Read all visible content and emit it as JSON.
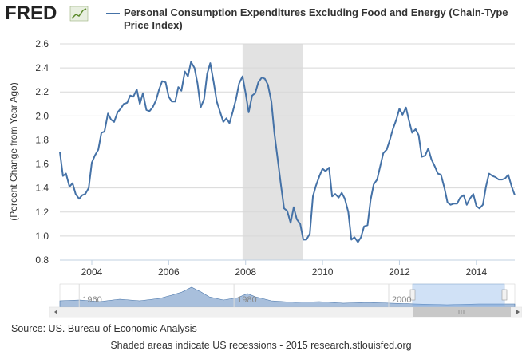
{
  "logo": "FRED",
  "source": "Source: US. Bureau of Economic Analysis",
  "footer": "Shaded areas indicate US recessions - 2015 research.stlouisfed.org",
  "chart_data": {
    "type": "line",
    "ylabel": "(Percent Change from Year Ago)",
    "xlim": [
      2003.17,
      2015.0
    ],
    "xticks": [
      2004,
      2006,
      2008,
      2010,
      2012,
      2014
    ],
    "ylim": [
      0.8,
      2.6
    ],
    "yticks": [
      0.8,
      {
        "value": 1.0,
        "label": "1.0"
      },
      1.2,
      1.4,
      1.6,
      1.8,
      {
        "value": 2.0,
        "label": "2.0"
      },
      2.2,
      2.4,
      2.6
    ],
    "grid": true,
    "recessions": [
      [
        2007.92,
        2009.5
      ]
    ],
    "recession_color": "#e2e2e2",
    "navigator_xlim": [
      1957.5,
      2016.3
    ],
    "navigator_xticks": [
      1960,
      1980,
      2000
    ],
    "x": [
      2003.17,
      2003.25,
      2003.33,
      2003.42,
      2003.5,
      2003.58,
      2003.67,
      2003.75,
      2003.83,
      2003.92,
      2004.0,
      2004.08,
      2004.17,
      2004.25,
      2004.33,
      2004.42,
      2004.5,
      2004.58,
      2004.67,
      2004.75,
      2004.83,
      2004.92,
      2005.0,
      2005.08,
      2005.17,
      2005.25,
      2005.33,
      2005.42,
      2005.5,
      2005.58,
      2005.67,
      2005.75,
      2005.83,
      2005.92,
      2006.0,
      2006.08,
      2006.17,
      2006.25,
      2006.33,
      2006.42,
      2006.5,
      2006.58,
      2006.67,
      2006.75,
      2006.83,
      2006.92,
      2007.0,
      2007.08,
      2007.17,
      2007.25,
      2007.33,
      2007.42,
      2007.5,
      2007.58,
      2007.67,
      2007.75,
      2007.83,
      2007.92,
      2008.0,
      2008.08,
      2008.17,
      2008.25,
      2008.33,
      2008.42,
      2008.5,
      2008.58,
      2008.67,
      2008.75,
      2008.83,
      2008.92,
      2009.0,
      2009.08,
      2009.17,
      2009.25,
      2009.33,
      2009.42,
      2009.5,
      2009.58,
      2009.67,
      2009.75,
      2009.83,
      2009.92,
      2010.0,
      2010.08,
      2010.17,
      2010.25,
      2010.33,
      2010.42,
      2010.5,
      2010.58,
      2010.67,
      2010.75,
      2010.83,
      2010.92,
      2011.0,
      2011.08,
      2011.17,
      2011.25,
      2011.33,
      2011.42,
      2011.5,
      2011.58,
      2011.67,
      2011.75,
      2011.83,
      2011.92,
      2012.0,
      2012.08,
      2012.17,
      2012.25,
      2012.33,
      2012.42,
      2012.5,
      2012.58,
      2012.67,
      2012.75,
      2012.83,
      2012.92,
      2013.0,
      2013.08,
      2013.17,
      2013.25,
      2013.33,
      2013.42,
      2013.5,
      2013.58,
      2013.67,
      2013.75,
      2013.83,
      2013.92,
      2014.0,
      2014.08,
      2014.17,
      2014.25,
      2014.33,
      2014.42,
      2014.5,
      2014.58,
      2014.67,
      2014.75,
      2014.83,
      2014.92,
      2015.0
    ],
    "series": [
      {
        "name": "Personal Consumption Expenditures Excluding Food and Energy (Chain-Type Price Index)",
        "color": "#4572A7",
        "values": [
          1.7,
          1.5,
          1.52,
          1.41,
          1.44,
          1.35,
          1.31,
          1.34,
          1.35,
          1.4,
          1.61,
          1.67,
          1.72,
          1.86,
          1.87,
          2.02,
          1.97,
          1.95,
          2.03,
          2.06,
          2.1,
          2.11,
          2.17,
          2.16,
          2.22,
          2.1,
          2.19,
          2.05,
          2.04,
          2.07,
          2.13,
          2.22,
          2.29,
          2.28,
          2.16,
          2.12,
          2.12,
          2.24,
          2.21,
          2.37,
          2.33,
          2.45,
          2.4,
          2.27,
          2.07,
          2.14,
          2.35,
          2.44,
          2.28,
          2.12,
          2.04,
          1.95,
          1.98,
          1.94,
          2.04,
          2.14,
          2.27,
          2.33,
          2.19,
          2.03,
          2.17,
          2.19,
          2.28,
          2.32,
          2.31,
          2.26,
          2.12,
          1.85,
          1.65,
          1.42,
          1.23,
          1.21,
          1.11,
          1.24,
          1.14,
          1.1,
          0.97,
          0.97,
          1.02,
          1.33,
          1.42,
          1.5,
          1.56,
          1.54,
          1.57,
          1.33,
          1.35,
          1.32,
          1.36,
          1.31,
          1.2,
          0.97,
          0.99,
          0.95,
          0.99,
          1.08,
          1.09,
          1.3,
          1.43,
          1.47,
          1.58,
          1.69,
          1.72,
          1.8,
          1.89,
          1.97,
          2.06,
          2.01,
          2.07,
          1.96,
          1.86,
          1.89,
          1.84,
          1.66,
          1.67,
          1.73,
          1.64,
          1.58,
          1.52,
          1.51,
          1.4,
          1.28,
          1.26,
          1.27,
          1.27,
          1.32,
          1.34,
          1.26,
          1.31,
          1.35,
          1.25,
          1.23,
          1.26,
          1.41,
          1.52,
          1.5,
          1.49,
          1.47,
          1.47,
          1.48,
          1.51,
          1.41,
          1.34
        ]
      }
    ]
  }
}
